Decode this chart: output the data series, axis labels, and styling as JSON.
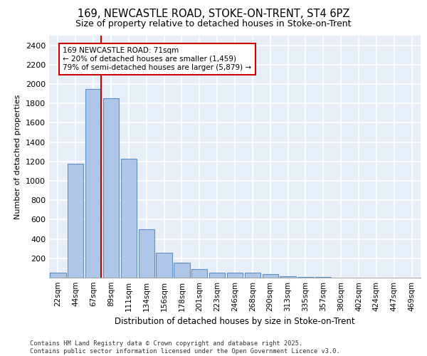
{
  "title_line1": "169, NEWCASTLE ROAD, STOKE-ON-TRENT, ST4 6PZ",
  "title_line2": "Size of property relative to detached houses in Stoke-on-Trent",
  "xlabel": "Distribution of detached houses by size in Stoke-on-Trent",
  "ylabel": "Number of detached properties",
  "categories": [
    "22sqm",
    "44sqm",
    "67sqm",
    "89sqm",
    "111sqm",
    "134sqm",
    "156sqm",
    "178sqm",
    "201sqm",
    "223sqm",
    "246sqm",
    "268sqm",
    "290sqm",
    "313sqm",
    "335sqm",
    "357sqm",
    "380sqm",
    "402sqm",
    "424sqm",
    "447sqm",
    "469sqm"
  ],
  "values": [
    50,
    1175,
    1950,
    1850,
    1225,
    500,
    260,
    155,
    90,
    50,
    55,
    55,
    40,
    15,
    5,
    5,
    2,
    2,
    1,
    1,
    1
  ],
  "bar_color": "#aec6e8",
  "bar_edge_color": "#5b8fc9",
  "ref_line_color": "#cc0000",
  "ref_line_x": 2.45,
  "annotation_line1": "169 NEWCASTLE ROAD: 71sqm",
  "annotation_line2": "← 20% of detached houses are smaller (1,459)",
  "annotation_line3": "79% of semi-detached houses are larger (5,879) →",
  "annotation_box_color": "#ffffff",
  "annotation_box_edge_color": "#cc0000",
  "ylim": [
    0,
    2500
  ],
  "yticks": [
    0,
    200,
    400,
    600,
    800,
    1000,
    1200,
    1400,
    1600,
    1800,
    2000,
    2200,
    2400
  ],
  "background_color": "#e8eef8",
  "grid_color": "#ffffff",
  "footer_line1": "Contains HM Land Registry data © Crown copyright and database right 2025.",
  "footer_line2": "Contains public sector information licensed under the Open Government Licence v3.0."
}
